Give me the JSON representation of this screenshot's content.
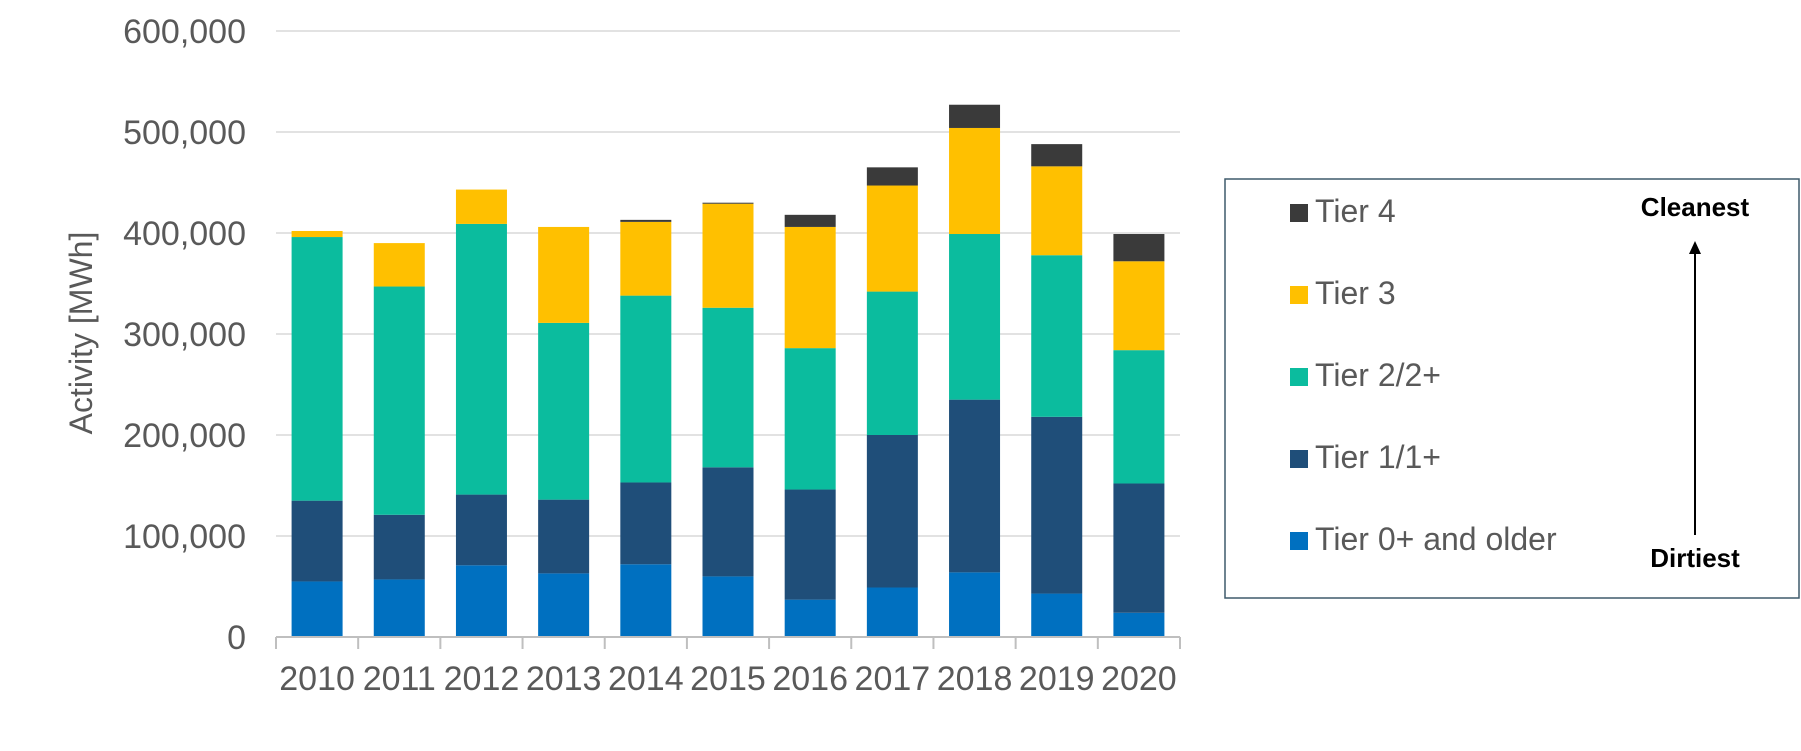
{
  "chart_data": {
    "type": "bar",
    "stacked": true,
    "title": "",
    "xlabel": "",
    "ylabel": "Activity [MWh]",
    "ylim": [
      0,
      600000
    ],
    "yticks": [
      0,
      100000,
      200000,
      300000,
      400000,
      500000,
      600000
    ],
    "ytick_labels": [
      "0",
      "100,000",
      "200,000",
      "300,000",
      "400,000",
      "500,000",
      "600,000"
    ],
    "grid": true,
    "legend_position": "right",
    "categories": [
      "2010",
      "2011",
      "2012",
      "2013",
      "2014",
      "2015",
      "2016",
      "2017",
      "2018",
      "2019",
      "2020"
    ],
    "series": [
      {
        "name": "Tier 0+ and older",
        "color": "#0070C0",
        "values": [
          55000,
          57000,
          71000,
          63000,
          72000,
          60000,
          37000,
          49000,
          64000,
          43000,
          24000
        ]
      },
      {
        "name": "Tier 1/1+",
        "color": "#1F4E79",
        "values": [
          80000,
          64000,
          70000,
          73000,
          81000,
          108000,
          109000,
          151000,
          171000,
          175000,
          128000
        ]
      },
      {
        "name": "Tier 2/2+",
        "color": "#0BBC9E",
        "values": [
          261000,
          226000,
          268000,
          175000,
          185000,
          158000,
          140000,
          142000,
          164000,
          160000,
          132000
        ]
      },
      {
        "name": "Tier 3",
        "color": "#FFC000",
        "values": [
          6000,
          43000,
          34000,
          95000,
          73000,
          103000,
          120000,
          105000,
          105000,
          88000,
          88000
        ]
      },
      {
        "name": "Tier 4",
        "color": "#3A3A3A",
        "values": [
          0,
          0,
          0,
          0,
          2000,
          1000,
          12000,
          18000,
          23000,
          22000,
          27000
        ]
      }
    ],
    "annotations": {
      "top": "Cleanest",
      "bottom": "Dirtiest"
    }
  }
}
